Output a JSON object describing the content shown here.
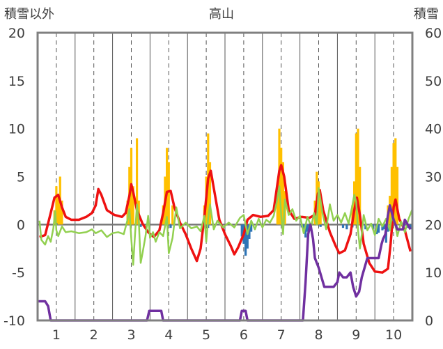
{
  "chart_data": {
    "type": "bar+line",
    "title": "高山",
    "ylabel_left": "積雪以外",
    "ylabel_right": "積雪",
    "xlim": [
      0.5,
      10.5
    ],
    "ylim_left": [
      -10,
      20
    ],
    "ylim_right": [
      0,
      60
    ],
    "x_ticks": [
      "1",
      "2",
      "3",
      "4",
      "5",
      "6",
      "7",
      "8",
      "9",
      "10"
    ],
    "y_ticks_left": [
      "-10",
      "-5",
      "0",
      "5",
      "10",
      "15",
      "20"
    ],
    "y_ticks_right": [
      "0",
      "10",
      "20",
      "30",
      "40",
      "50",
      "60"
    ],
    "grid": "vertical dashed at each day, solid at day boundaries",
    "colors": {
      "red_line": "#ee1111",
      "green_line": "#92d050",
      "purple_line": "#7030a0",
      "orange_bars": "#ffc000",
      "blue_bars": "#2e75b6",
      "axis": "#808080"
    },
    "series": [
      {
        "axis": "left",
        "kind": "line",
        "color": "#ee1111",
        "points": [
          [
            0.55,
            -1.3
          ],
          [
            0.7,
            -1.1
          ],
          [
            0.85,
            1.2
          ],
          [
            0.95,
            2.8
          ],
          [
            1.05,
            3.1
          ],
          [
            1.15,
            1.8
          ],
          [
            1.25,
            0.8
          ],
          [
            1.4,
            0.5
          ],
          [
            1.6,
            0.5
          ],
          [
            1.8,
            0.8
          ],
          [
            1.95,
            1.2
          ],
          [
            2.05,
            2.0
          ],
          [
            2.12,
            3.7
          ],
          [
            2.2,
            3.1
          ],
          [
            2.35,
            1.5
          ],
          [
            2.55,
            1.0
          ],
          [
            2.75,
            0.8
          ],
          [
            2.85,
            1.2
          ],
          [
            2.95,
            3.0
          ],
          [
            3.0,
            4.2
          ],
          [
            3.05,
            3.4
          ],
          [
            3.15,
            1.5
          ],
          [
            3.3,
            0.1
          ],
          [
            3.45,
            -0.8
          ],
          [
            3.6,
            -1.3
          ],
          [
            3.75,
            -0.6
          ],
          [
            3.85,
            1.2
          ],
          [
            3.95,
            3.4
          ],
          [
            4.05,
            3.5
          ],
          [
            4.15,
            1.8
          ],
          [
            4.3,
            0.2
          ],
          [
            4.45,
            -1.0
          ],
          [
            4.6,
            -2.5
          ],
          [
            4.75,
            -3.8
          ],
          [
            4.85,
            -2.5
          ],
          [
            4.95,
            0.8
          ],
          [
            5.05,
            4.8
          ],
          [
            5.12,
            5.6
          ],
          [
            5.2,
            3.8
          ],
          [
            5.35,
            0.5
          ],
          [
            5.5,
            -1.0
          ],
          [
            5.65,
            -2.2
          ],
          [
            5.75,
            -3.1
          ],
          [
            5.85,
            -2.4
          ],
          [
            6.0,
            -1.0
          ],
          [
            6.1,
            0.5
          ],
          [
            6.25,
            1.0
          ],
          [
            6.45,
            0.8
          ],
          [
            6.65,
            0.9
          ],
          [
            6.8,
            1.5
          ],
          [
            6.95,
            5.6
          ],
          [
            7.0,
            6.2
          ],
          [
            7.08,
            5.0
          ],
          [
            7.2,
            1.5
          ],
          [
            7.35,
            0.6
          ],
          [
            7.55,
            0.8
          ],
          [
            7.75,
            0.7
          ],
          [
            7.9,
            1.0
          ],
          [
            7.98,
            3.2
          ],
          [
            8.03,
            3.6
          ],
          [
            8.12,
            1.5
          ],
          [
            8.3,
            -0.8
          ],
          [
            8.45,
            -2.2
          ],
          [
            8.55,
            -3.0
          ],
          [
            8.7,
            -2.7
          ],
          [
            8.85,
            -1.0
          ],
          [
            8.95,
            1.5
          ],
          [
            9.02,
            2.8
          ],
          [
            9.1,
            1.0
          ],
          [
            9.2,
            -2.0
          ],
          [
            9.35,
            -4.0
          ],
          [
            9.5,
            -4.9
          ],
          [
            9.7,
            -5.0
          ],
          [
            9.85,
            -4.6
          ],
          [
            9.92,
            -2.0
          ],
          [
            10.0,
            1.8
          ],
          [
            10.05,
            2.6
          ],
          [
            10.15,
            0.6
          ],
          [
            10.3,
            -0.6
          ],
          [
            10.45,
            -2.8
          ]
        ]
      },
      {
        "axis": "left",
        "kind": "line",
        "color": "#92d050",
        "points": [
          [
            0.55,
            0.4
          ],
          [
            0.6,
            -1.6
          ],
          [
            0.7,
            -2.1
          ],
          [
            0.78,
            -1.2
          ],
          [
            0.85,
            -1.8
          ],
          [
            0.92,
            -0.4
          ],
          [
            0.97,
            1.4
          ],
          [
            1.0,
            -0.6
          ],
          [
            1.05,
            -1.2
          ],
          [
            1.15,
            -0.2
          ],
          [
            1.25,
            -0.8
          ],
          [
            1.4,
            -0.7
          ],
          [
            1.6,
            -0.9
          ],
          [
            1.8,
            -0.8
          ],
          [
            1.95,
            -0.5
          ],
          [
            2.05,
            -0.9
          ],
          [
            2.2,
            -0.6
          ],
          [
            2.35,
            -1.3
          ],
          [
            2.5,
            -0.9
          ],
          [
            2.65,
            -0.8
          ],
          [
            2.8,
            -1.0
          ],
          [
            2.9,
            0.5
          ],
          [
            2.95,
            1.6
          ],
          [
            3.0,
            -1.5
          ],
          [
            3.05,
            -4.2
          ],
          [
            3.1,
            -1.0
          ],
          [
            3.15,
            2.1
          ],
          [
            3.2,
            0.3
          ],
          [
            3.25,
            -4.0
          ],
          [
            3.3,
            -3.0
          ],
          [
            3.38,
            -1.2
          ],
          [
            3.45,
            0.9
          ],
          [
            3.5,
            -1.4
          ],
          [
            3.58,
            -0.8
          ],
          [
            3.65,
            -1.8
          ],
          [
            3.75,
            -0.8
          ],
          [
            3.85,
            -1.2
          ],
          [
            3.95,
            0.8
          ],
          [
            4.0,
            -3.0
          ],
          [
            4.05,
            -2.2
          ],
          [
            4.1,
            -1.4
          ],
          [
            4.2,
            1.8
          ],
          [
            4.3,
            -0.4
          ],
          [
            4.45,
            0.2
          ],
          [
            4.6,
            -0.4
          ],
          [
            4.75,
            -0.2
          ],
          [
            4.85,
            -0.7
          ],
          [
            4.95,
            0.9
          ],
          [
            5.0,
            -1.8
          ],
          [
            5.05,
            0.6
          ],
          [
            5.1,
            2.1
          ],
          [
            5.2,
            -0.5
          ],
          [
            5.3,
            0.4
          ],
          [
            5.45,
            -0.3
          ],
          [
            5.6,
            0.2
          ],
          [
            5.75,
            -0.3
          ],
          [
            5.9,
            0.7
          ],
          [
            6.0,
            1.0
          ],
          [
            6.1,
            -1.0
          ],
          [
            6.2,
            0.4
          ],
          [
            6.3,
            -0.5
          ],
          [
            6.4,
            0.6
          ],
          [
            6.5,
            -0.3
          ],
          [
            6.6,
            0.5
          ],
          [
            6.7,
            0.2
          ],
          [
            6.8,
            0.9
          ],
          [
            6.88,
            2.3
          ],
          [
            6.95,
            4.0
          ],
          [
            7.0,
            1.0
          ],
          [
            7.05,
            -1.0
          ],
          [
            7.1,
            2.6
          ],
          [
            7.2,
            1.0
          ],
          [
            7.3,
            1.6
          ],
          [
            7.4,
            0.4
          ],
          [
            7.5,
            0.9
          ],
          [
            7.6,
            -0.9
          ],
          [
            7.7,
            0.8
          ],
          [
            7.8,
            -0.2
          ],
          [
            7.88,
            1.2
          ],
          [
            7.95,
            0.0
          ],
          [
            8.0,
            3.8
          ],
          [
            8.1,
            1.2
          ],
          [
            8.2,
            -0.5
          ],
          [
            8.3,
            2.1
          ],
          [
            8.4,
            0.4
          ],
          [
            8.5,
            1.0
          ],
          [
            8.6,
            0.2
          ],
          [
            8.7,
            1.2
          ],
          [
            8.8,
            0.1
          ],
          [
            8.9,
            2.0
          ],
          [
            8.95,
            3.1
          ],
          [
            9.0,
            2.4
          ],
          [
            9.05,
            -0.6
          ],
          [
            9.1,
            -2.5
          ],
          [
            9.15,
            -1.0
          ],
          [
            9.2,
            1.0
          ],
          [
            9.3,
            -0.6
          ],
          [
            9.4,
            0.1
          ],
          [
            9.5,
            -1.1
          ],
          [
            9.6,
            0.6
          ],
          [
            9.7,
            -0.2
          ],
          [
            9.8,
            0.6
          ],
          [
            9.9,
            -0.6
          ],
          [
            9.95,
            0.8
          ],
          [
            10.05,
            -0.1
          ],
          [
            10.1,
            -1.2
          ],
          [
            10.2,
            0.3
          ],
          [
            10.3,
            -0.8
          ],
          [
            10.4,
            0.6
          ],
          [
            10.5,
            1.6
          ]
        ]
      },
      {
        "axis": "right",
        "kind": "line",
        "color": "#7030a0",
        "points": [
          [
            0.5,
            4
          ],
          [
            0.7,
            4
          ],
          [
            0.78,
            3
          ],
          [
            0.85,
            0
          ],
          [
            3.42,
            0
          ],
          [
            3.48,
            2
          ],
          [
            3.8,
            2
          ],
          [
            3.85,
            0
          ],
          [
            5.9,
            0
          ],
          [
            5.95,
            2
          ],
          [
            6.05,
            2
          ],
          [
            6.1,
            0
          ],
          [
            7.58,
            0
          ],
          [
            7.65,
            8
          ],
          [
            7.72,
            18
          ],
          [
            7.78,
            20
          ],
          [
            7.85,
            17
          ],
          [
            7.9,
            13
          ],
          [
            8.0,
            11
          ],
          [
            8.15,
            7
          ],
          [
            8.4,
            7
          ],
          [
            8.5,
            8
          ],
          [
            8.55,
            10
          ],
          [
            8.65,
            9
          ],
          [
            8.75,
            9
          ],
          [
            8.85,
            10
          ],
          [
            8.92,
            7
          ],
          [
            9.0,
            5
          ],
          [
            9.08,
            6
          ],
          [
            9.15,
            9
          ],
          [
            9.3,
            13
          ],
          [
            9.6,
            13
          ],
          [
            9.68,
            16
          ],
          [
            9.72,
            17
          ],
          [
            9.78,
            18
          ],
          [
            9.85,
            22
          ],
          [
            9.9,
            24
          ],
          [
            10.0,
            21
          ],
          [
            10.1,
            19
          ],
          [
            10.25,
            19
          ],
          [
            10.3,
            21
          ],
          [
            10.45,
            19
          ]
        ]
      },
      {
        "axis": "right",
        "kind": "bar",
        "color": "#ffc000",
        "values": [
          [
            0.95,
            23
          ],
          [
            1.0,
            28
          ],
          [
            1.05,
            26
          ],
          [
            1.1,
            30
          ],
          [
            1.15,
            25
          ],
          [
            2.9,
            25
          ],
          [
            2.95,
            32
          ],
          [
            3.0,
            36
          ],
          [
            3.05,
            28
          ],
          [
            3.15,
            38
          ],
          [
            3.2,
            25
          ],
          [
            3.85,
            24
          ],
          [
            3.9,
            30
          ],
          [
            3.95,
            36
          ],
          [
            4.0,
            33
          ],
          [
            4.1,
            24
          ],
          [
            4.95,
            24
          ],
          [
            5.0,
            30
          ],
          [
            5.05,
            39
          ],
          [
            5.1,
            33
          ],
          [
            6.9,
            28
          ],
          [
            6.95,
            40
          ],
          [
            7.0,
            36
          ],
          [
            7.05,
            33
          ],
          [
            7.1,
            27
          ],
          [
            7.9,
            25
          ],
          [
            7.95,
            31
          ],
          [
            8.0,
            29
          ],
          [
            8.05,
            25
          ],
          [
            8.9,
            24
          ],
          [
            8.95,
            29
          ],
          [
            9.0,
            39
          ],
          [
            9.05,
            40
          ],
          [
            9.1,
            32
          ],
          [
            9.85,
            24
          ],
          [
            9.9,
            26
          ],
          [
            9.95,
            32
          ],
          [
            10.0,
            37
          ],
          [
            10.05,
            38
          ],
          [
            10.1,
            32
          ]
        ]
      },
      {
        "axis": "right",
        "kind": "bar",
        "color": "#2e75b6",
        "values": [
          [
            1.0,
            20.3
          ],
          [
            3.25,
            19.5
          ],
          [
            4.05,
            19.3
          ],
          [
            5.05,
            19.3
          ],
          [
            5.95,
            17.5
          ],
          [
            6.0,
            16.0
          ],
          [
            6.05,
            13.5
          ],
          [
            6.1,
            15.0
          ],
          [
            6.15,
            17.0
          ],
          [
            6.2,
            18.5
          ],
          [
            7.55,
            19.4
          ],
          [
            7.6,
            18.8
          ],
          [
            7.65,
            17.3
          ],
          [
            7.7,
            18.5
          ],
          [
            7.75,
            19.6
          ],
          [
            8.05,
            19.5
          ],
          [
            8.65,
            19.3
          ],
          [
            8.75,
            19.0
          ],
          [
            8.9,
            19.4
          ],
          [
            9.15,
            19.3
          ],
          [
            9.25,
            19.0
          ],
          [
            9.45,
            19.0
          ],
          [
            9.55,
            18.0
          ],
          [
            9.6,
            18.3
          ],
          [
            9.7,
            18.8
          ],
          [
            9.75,
            19.0
          ],
          [
            9.8,
            16.2
          ],
          [
            9.85,
            18.5
          ],
          [
            10.35,
            19.3
          ],
          [
            10.45,
            19.0
          ]
        ]
      }
    ]
  }
}
